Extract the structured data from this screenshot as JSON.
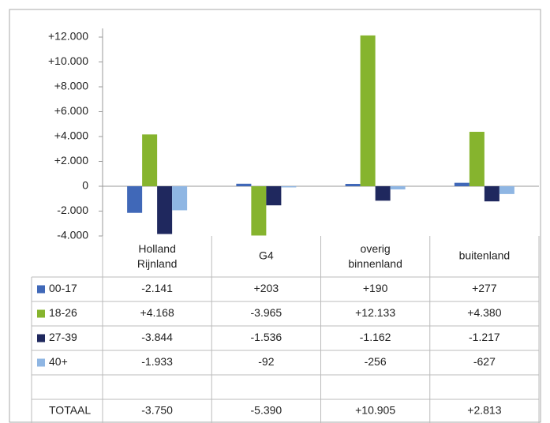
{
  "chart_data": {
    "type": "bar",
    "categories": [
      "Holland Rijnland",
      "G4",
      "overig binnenland",
      "buitenland"
    ],
    "series": [
      {
        "name": "00-17",
        "color": "#4068b8",
        "values": [
          -2141,
          203,
          190,
          277
        ],
        "value_labels": [
          "-2.141",
          "+203",
          "+190",
          "+277"
        ]
      },
      {
        "name": "18-26",
        "color": "#86b42e",
        "values": [
          4168,
          -3965,
          12133,
          4380
        ],
        "value_labels": [
          "+4.168",
          "-3.965",
          "+12.133",
          "+4.380"
        ]
      },
      {
        "name": "27-39",
        "color": "#1f285e",
        "values": [
          -3844,
          -1536,
          -1162,
          -1217
        ],
        "value_labels": [
          "-3.844",
          "-1.536",
          "-1.162",
          "-1.217"
        ]
      },
      {
        "name": "40+",
        "color": "#8fb6e3",
        "values": [
          -1933,
          -92,
          -256,
          -627
        ],
        "value_labels": [
          "-1.933",
          "-92",
          "-256",
          "-627"
        ]
      }
    ],
    "totals": {
      "label": "TOTAAL",
      "labels": [
        "-3.750",
        "-5.390",
        "+10.905",
        "+2.813"
      ]
    },
    "ylim": [
      -4000,
      12000
    ],
    "yticks": [
      {
        "value": -4000,
        "label": "-4.000"
      },
      {
        "value": -2000,
        "label": "-2.000"
      },
      0,
      {
        "value": 2000,
        "label": "+2.000"
      },
      {
        "value": 4000,
        "label": "+4.000"
      },
      {
        "value": 6000,
        "label": "+6.000"
      },
      {
        "value": 8000,
        "label": "+8.000"
      },
      {
        "value": 10000,
        "label": "+10.000"
      },
      {
        "value": 12000,
        "label": "+12.000"
      }
    ],
    "grid": false
  }
}
